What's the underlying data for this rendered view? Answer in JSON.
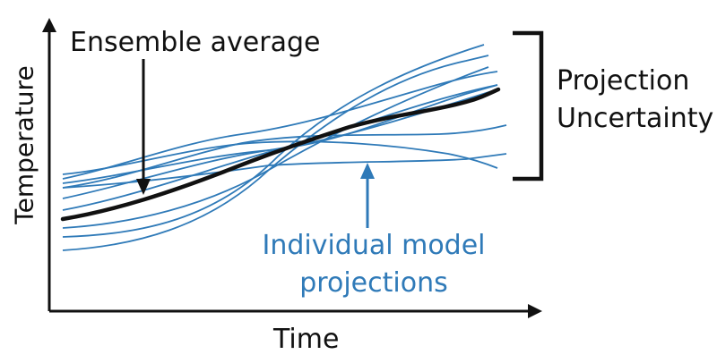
{
  "labels": {
    "ensemble": "Ensemble average",
    "uncertainty": [
      "Projection",
      "Uncertainty"
    ],
    "individual": [
      "Individual model",
      "projections"
    ],
    "xaxis": "Time",
    "yaxis": "Temperature"
  },
  "colors": {
    "model_lines": "#2f7ab8",
    "ensemble_line": "#111111",
    "axes": "#111111",
    "background": "#ffffff"
  }
}
